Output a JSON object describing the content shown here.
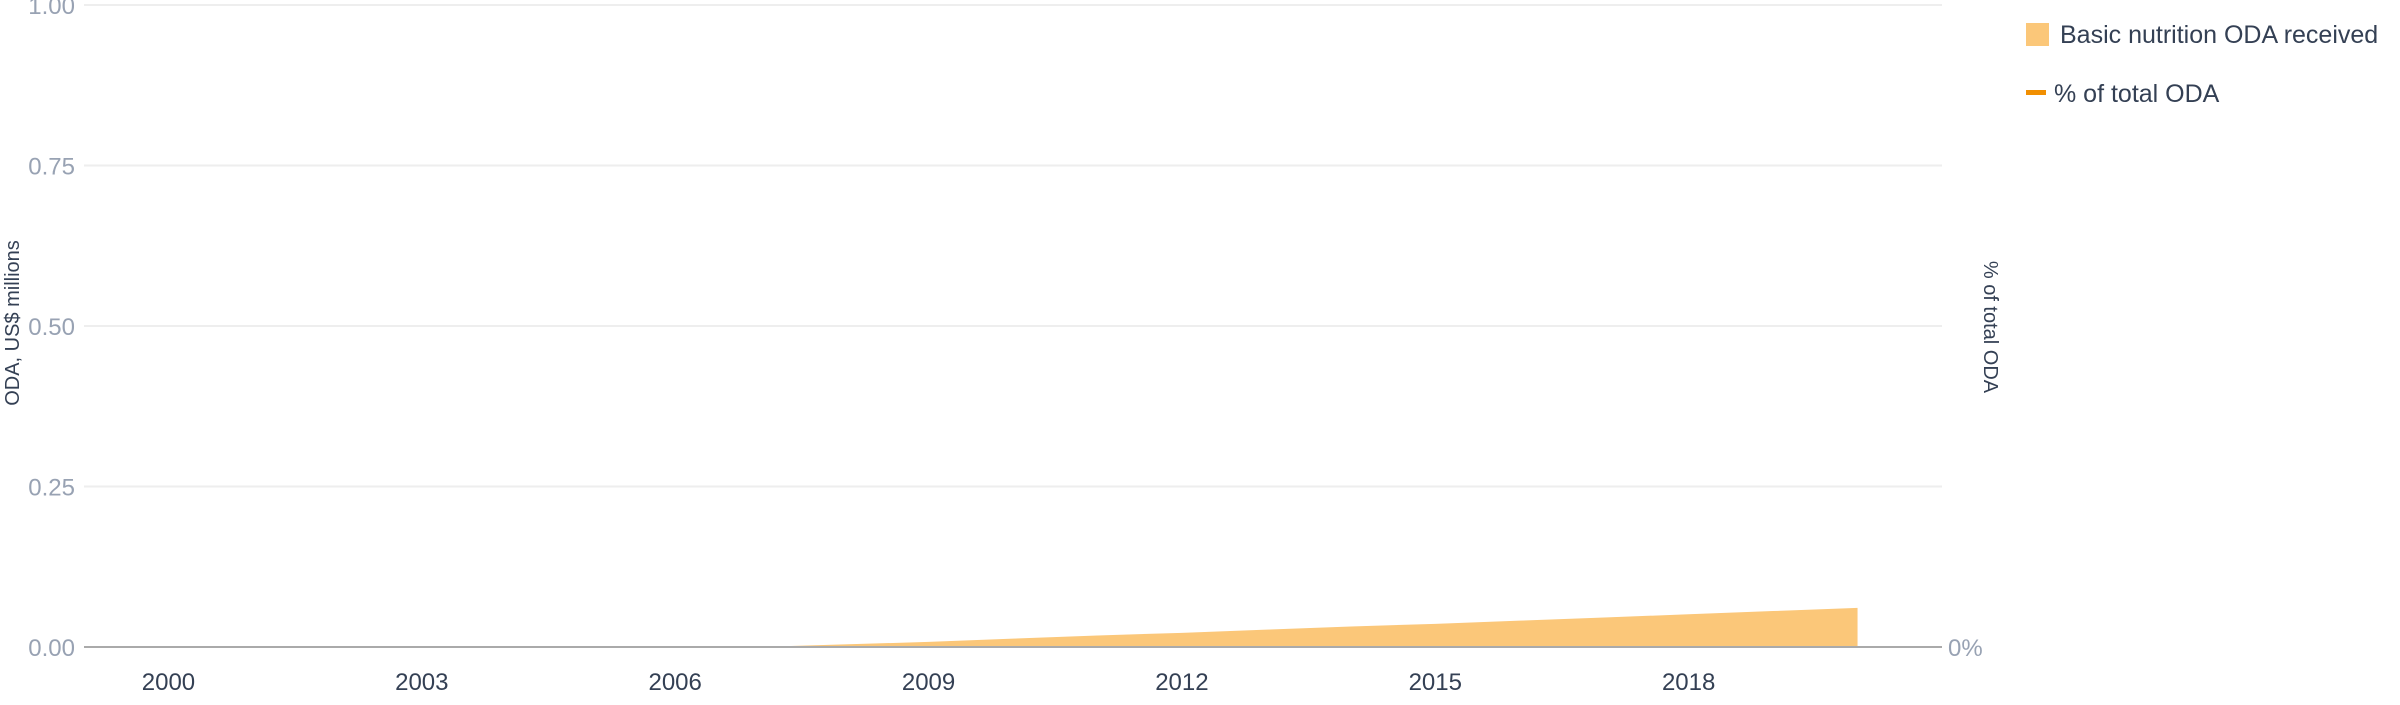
{
  "chart_data": {
    "type": "area",
    "title": "",
    "xlabel": "",
    "ylabel_left": "ODA, US$ millions",
    "ylabel_right": "% of total ODA",
    "xlim": [
      1999,
      2021
    ],
    "ylim_left": [
      0,
      1
    ],
    "ylim_right_label": "0%",
    "grid": true,
    "legend_position": "top-right",
    "x_ticks": [
      "2000",
      "2003",
      "2006",
      "2009",
      "2012",
      "2015",
      "2018"
    ],
    "y_ticks_left": [
      "0.00",
      "0.25",
      "0.50",
      "0.75",
      "1.00"
    ],
    "y_ticks_right": [
      "0%"
    ],
    "colors": {
      "area": "#fbc779",
      "line": "#f18f01",
      "grid": "#eeeeee",
      "axis": "#aaaaaa"
    },
    "series": [
      {
        "name": "Basic nutrition ODA received",
        "kind": "area",
        "x": [
          1999,
          2000,
          2001,
          2002,
          2003,
          2004,
          2005,
          2006,
          2007,
          2008,
          2009,
          2010,
          2011,
          2012,
          2013,
          2014,
          2015,
          2016,
          2017,
          2018,
          2019,
          2020
        ],
        "values": [
          0,
          0,
          0,
          0,
          0,
          0,
          0,
          0,
          0,
          0.004,
          0.008,
          0.013,
          0.018,
          0.022,
          0.027,
          0.032,
          0.036,
          0.041,
          0.046,
          0.051,
          0.056,
          0.061
        ]
      },
      {
        "name": "% of total ODA",
        "kind": "line",
        "x": [],
        "values": []
      }
    ]
  }
}
